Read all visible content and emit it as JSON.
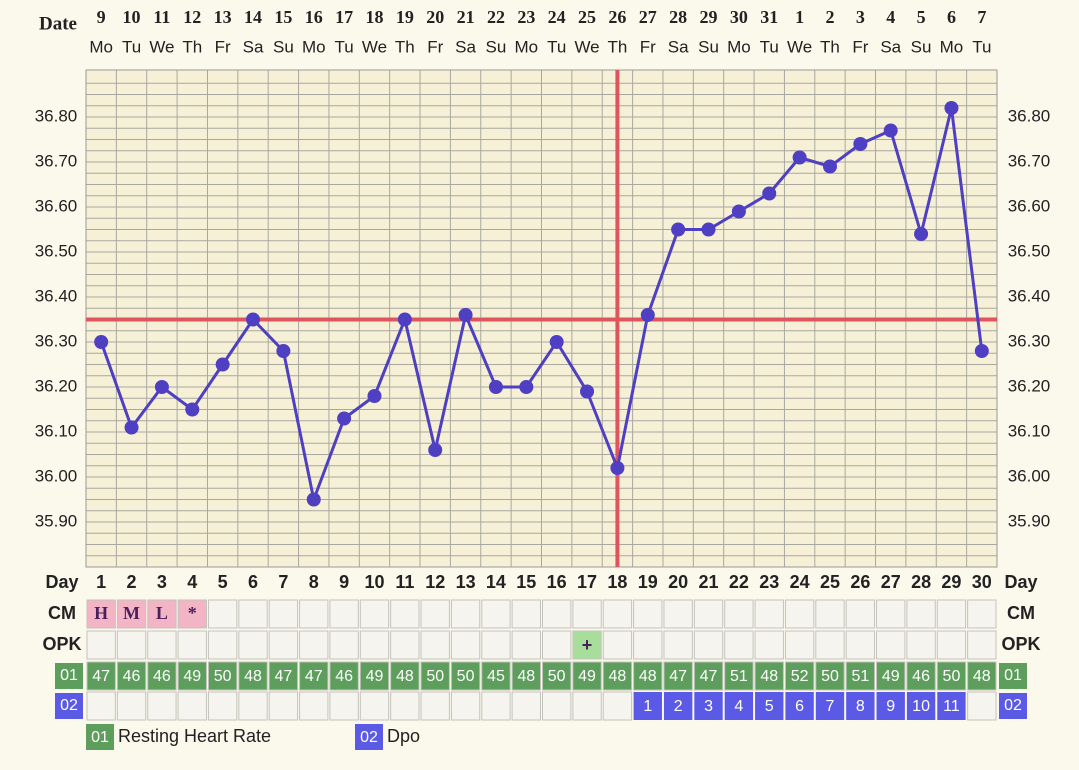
{
  "chart_data": {
    "type": "line",
    "date_label": "Date",
    "day_label": "Day",
    "dates": [
      9,
      10,
      11,
      12,
      13,
      14,
      15,
      16,
      17,
      18,
      19,
      20,
      21,
      22,
      23,
      24,
      25,
      26,
      27,
      28,
      29,
      30,
      31,
      1,
      2,
      3,
      4,
      5,
      6,
      7
    ],
    "weekdays": [
      "Mo",
      "Tu",
      "We",
      "Th",
      "Fr",
      "Sa",
      "Su",
      "Mo",
      "Tu",
      "We",
      "Th",
      "Fr",
      "Sa",
      "Su",
      "Mo",
      "Tu",
      "We",
      "Th",
      "Fr",
      "Sa",
      "Su",
      "Mo",
      "Tu",
      "We",
      "Th",
      "Fr",
      "Sa",
      "Su",
      "Mo",
      "Tu"
    ],
    "categories": [
      1,
      2,
      3,
      4,
      5,
      6,
      7,
      8,
      9,
      10,
      11,
      12,
      13,
      14,
      15,
      16,
      17,
      18,
      19,
      20,
      21,
      22,
      23,
      24,
      25,
      26,
      27,
      28,
      29,
      30
    ],
    "values": [
      36.3,
      36.11,
      36.2,
      36.15,
      36.25,
      36.35,
      36.28,
      35.95,
      36.13,
      36.18,
      36.35,
      36.06,
      36.36,
      36.2,
      36.2,
      36.3,
      36.19,
      36.02,
      36.36,
      36.55,
      36.55,
      36.59,
      36.63,
      36.71,
      36.69,
      36.74,
      36.77,
      36.54,
      36.82,
      36.28
    ],
    "color": "#4f3fc2",
    "coverline": 36.35,
    "ovulation_day": 18,
    "reference_color": "#de5560",
    "ylim": [
      35.8,
      36.9
    ],
    "yticks": [
      {
        "value": 35.9,
        "label": "35.90"
      },
      {
        "value": 36.0,
        "label": "36.00"
      },
      {
        "value": 36.1,
        "label": "36.10"
      },
      {
        "value": 36.2,
        "label": "36.20"
      },
      {
        "value": 36.3,
        "label": "36.30"
      },
      {
        "value": 36.4,
        "label": "36.40"
      },
      {
        "value": 36.5,
        "label": "36.50"
      },
      {
        "value": 36.6,
        "label": "36.60"
      },
      {
        "value": 36.7,
        "label": "36.70"
      },
      {
        "value": 36.8,
        "label": "36.80"
      }
    ],
    "grid": true,
    "rows": [
      {
        "label": "CM",
        "color": "#f3b5c6",
        "values": [
          "H",
          "M",
          "L",
          "*",
          null,
          null,
          null,
          null,
          null,
          null,
          null,
          null,
          null,
          null,
          null,
          null,
          null,
          null,
          null,
          null,
          null,
          null,
          null,
          null,
          null,
          null,
          null,
          null,
          null,
          null
        ]
      },
      {
        "label": "OPK",
        "color": "#a8de9c",
        "values": [
          null,
          null,
          null,
          null,
          null,
          null,
          null,
          null,
          null,
          null,
          null,
          null,
          null,
          null,
          null,
          null,
          "+",
          null,
          null,
          null,
          null,
          null,
          null,
          null,
          null,
          null,
          null,
          null,
          null,
          null
        ]
      },
      {
        "label": "01",
        "name": "Resting Heart Rate",
        "color": "#5d9e5d",
        "values": [
          47,
          46,
          46,
          49,
          50,
          48,
          47,
          47,
          46,
          49,
          48,
          50,
          50,
          45,
          48,
          50,
          49,
          48,
          48,
          47,
          47,
          51,
          48,
          52,
          50,
          51,
          49,
          46,
          50,
          48
        ]
      },
      {
        "label": "02",
        "name": "Dpo",
        "color": "#5a5ae6",
        "values": [
          null,
          null,
          null,
          null,
          null,
          null,
          null,
          null,
          null,
          null,
          null,
          null,
          null,
          null,
          null,
          null,
          null,
          null,
          1,
          2,
          3,
          4,
          5,
          6,
          7,
          8,
          9,
          10,
          11,
          null
        ]
      }
    ]
  }
}
